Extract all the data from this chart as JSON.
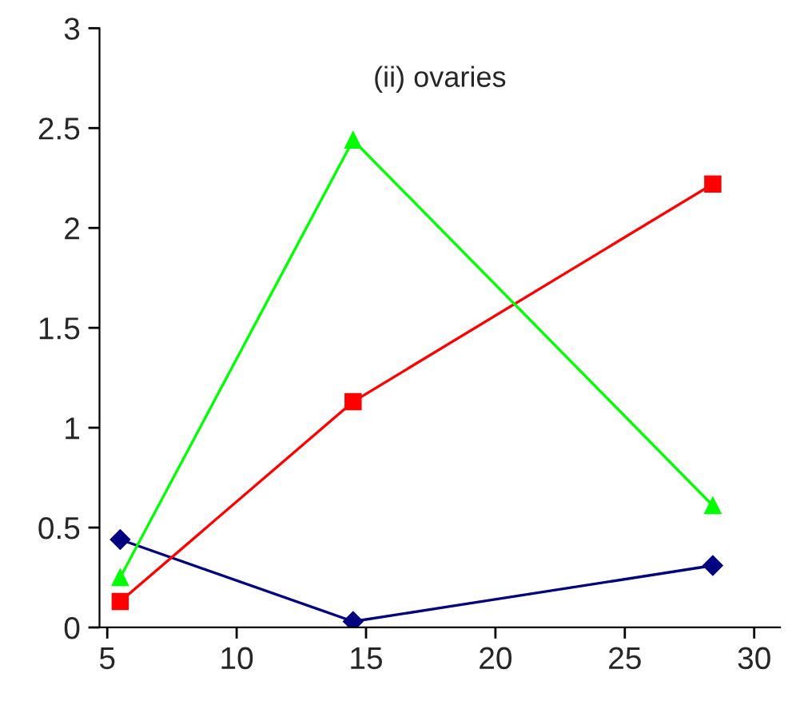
{
  "chart_data": {
    "type": "line",
    "title": "(ii) ovaries",
    "xlim": [
      4.7,
      31
    ],
    "xticks": [
      5,
      10,
      15,
      20,
      25,
      30
    ],
    "ylim": [
      0,
      3
    ],
    "yticks": [
      0,
      0.5,
      1,
      1.5,
      2,
      2.5,
      3
    ],
    "grid": false,
    "legend": false,
    "x": [
      5.5,
      14.5,
      28.4
    ],
    "series": [
      {
        "color": "#000080",
        "marker": "diamond",
        "values": [
          0.44,
          0.03,
          0.31
        ]
      },
      {
        "color": "#ff0000",
        "marker": "square",
        "values": [
          0.13,
          1.13,
          2.22
        ]
      },
      {
        "color": "#00ff00",
        "marker": "triangle",
        "values": [
          0.25,
          2.44,
          0.61
        ]
      }
    ]
  }
}
